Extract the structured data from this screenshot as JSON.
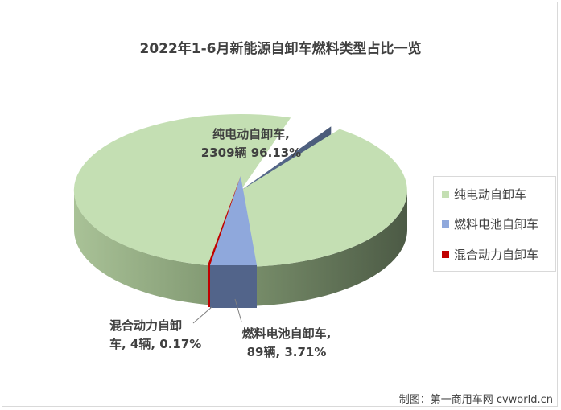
{
  "chart_data": {
    "type": "pie",
    "style": "3d-exploded",
    "title": "2022年1-6月新能源自卸车燃料类型占比一览",
    "series": [
      {
        "name": "纯电动自卸车",
        "value": 2309,
        "percent": 96.13,
        "color": "#c4dfb3",
        "label_line1": "纯电动自卸车,",
        "label_line2": "2309辆 96.13%"
      },
      {
        "name": "燃料电池自卸车",
        "value": 89,
        "percent": 3.71,
        "color": "#8fa8dc",
        "label_line1": "燃料电池自卸车,",
        "label_line2": "89辆, 3.71%"
      },
      {
        "name": "混合动力自卸车",
        "value": 4,
        "percent": 0.17,
        "color": "#c00000",
        "label_line1": "混合动力自卸",
        "label_line2": "车, 4辆, 0.17%"
      }
    ],
    "legend_position": "right"
  },
  "credit": "制图：第一商用车网 cvworld.cn"
}
